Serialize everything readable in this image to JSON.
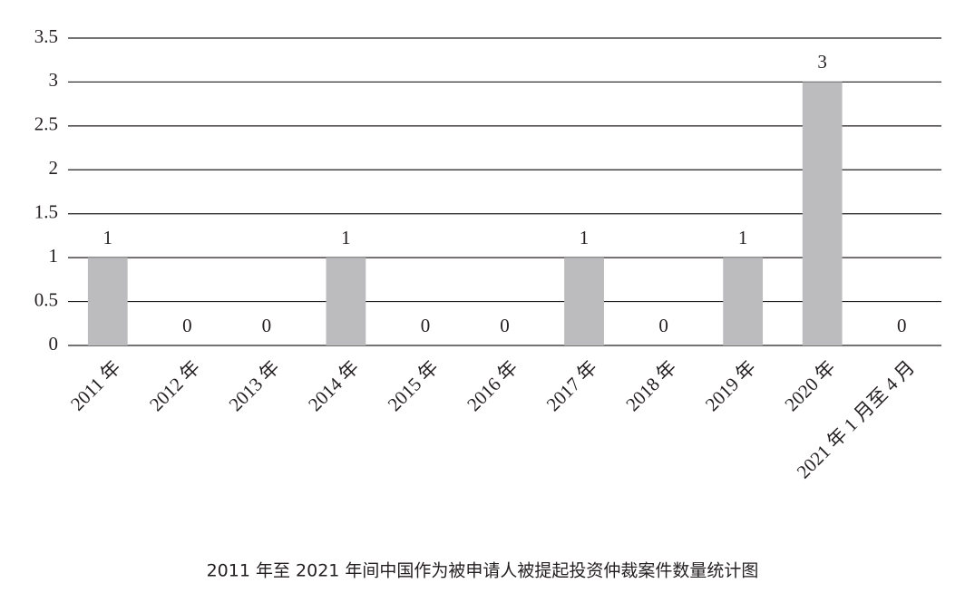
{
  "chart_data": {
    "type": "bar",
    "title": "2011 年至 2021 年间中国作为被申请人被提起投资仲裁案件数量统计图",
    "categories": [
      "2011 年",
      "2012 年",
      "2013 年",
      "2014 年",
      "2015 年",
      "2016 年",
      "2017 年",
      "2018 年",
      "2019 年",
      "2020 年",
      "2021 年 1 月至 4 月"
    ],
    "values": [
      1,
      0,
      0,
      1,
      0,
      0,
      1,
      0,
      1,
      3,
      0
    ],
    "color": "#bcbcbe",
    "ylim": [
      0,
      3.5
    ],
    "yticks": [
      0,
      0.5,
      1,
      1.5,
      2,
      2.5,
      3,
      3.5
    ],
    "grid": true
  }
}
